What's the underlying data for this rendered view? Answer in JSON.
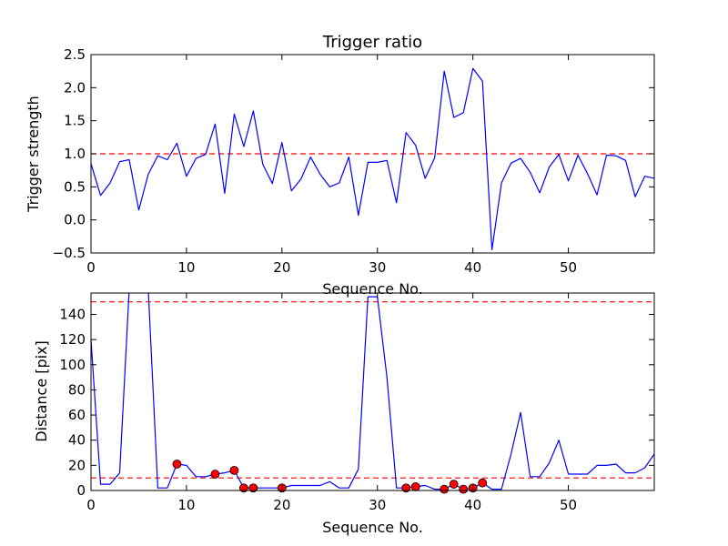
{
  "chart_data": [
    {
      "type": "line",
      "title": "Trigger ratio",
      "xlabel": "Sequence No.",
      "ylabel": "Trigger strength",
      "xlim": [
        0,
        59
      ],
      "ylim": [
        -0.5,
        2.5
      ],
      "xticks": [
        "0",
        "10",
        "20",
        "30",
        "40",
        "50"
      ],
      "yticks": [
        "2.5",
        "2.0",
        "1.5",
        "1.0",
        "0.5",
        "0.0",
        "−0.5"
      ],
      "threshold": 1.0,
      "grid": false,
      "colors": {
        "line": "#0000ff",
        "threshold": "#ff0000"
      },
      "series": [
        {
          "x": [
            0,
            1,
            2,
            3,
            4,
            5,
            6,
            7,
            8,
            9,
            10,
            11,
            12,
            13,
            14,
            15,
            16,
            17,
            18,
            19,
            20,
            21,
            22,
            23,
            24,
            25,
            26,
            27,
            28,
            29,
            30,
            31,
            32,
            33,
            34,
            35,
            36,
            37,
            38,
            39,
            40,
            41,
            42,
            43,
            44,
            45,
            46,
            47,
            48,
            49,
            50,
            51,
            52,
            53,
            54,
            55,
            56,
            57,
            58,
            59
          ],
          "values": [
            0.85,
            0.37,
            0.56,
            0.88,
            0.91,
            0.15,
            0.69,
            0.97,
            0.91,
            1.16,
            0.66,
            0.93,
            0.99,
            1.45,
            0.4,
            1.6,
            1.11,
            1.65,
            0.84,
            0.55,
            1.17,
            0.44,
            0.62,
            0.95,
            0.69,
            0.5,
            0.56,
            0.95,
            0.07,
            0.87,
            0.87,
            0.9,
            0.26,
            1.32,
            1.13,
            0.63,
            0.94,
            2.25,
            1.55,
            1.62,
            2.29,
            2.1,
            -0.45,
            0.56,
            0.86,
            0.93,
            0.72,
            0.41,
            0.8,
            0.99,
            0.59,
            0.98,
            0.7,
            0.38,
            0.98,
            0.97,
            0.9,
            0.35,
            0.66,
            0.63
          ]
        }
      ]
    },
    {
      "type": "line",
      "title": "",
      "xlabel": "Sequence No.",
      "ylabel": "Distance [pix]",
      "xlim": [
        0,
        59
      ],
      "ylim": [
        0,
        157
      ],
      "xticks": [
        "0",
        "10",
        "20",
        "30",
        "40",
        "50"
      ],
      "yticks": [
        "140",
        "120",
        "100",
        "80",
        "60",
        "40",
        "20",
        "0"
      ],
      "thresholds": [
        150,
        10
      ],
      "grid": false,
      "colors": {
        "line": "#0000ff",
        "threshold": "#ff0000",
        "marker": "#ff0000"
      },
      "series": [
        {
          "x": [
            0,
            1,
            2,
            3,
            4,
            5,
            6,
            7,
            8,
            9,
            10,
            11,
            12,
            13,
            14,
            15,
            16,
            17,
            18,
            19,
            20,
            21,
            22,
            23,
            24,
            25,
            26,
            27,
            28,
            29,
            30,
            31,
            32,
            33,
            34,
            35,
            36,
            37,
            38,
            39,
            40,
            41,
            42,
            43,
            44,
            45,
            46,
            47,
            48,
            49,
            50,
            51,
            52,
            53,
            54,
            55,
            56,
            57,
            58,
            59
          ],
          "values": [
            120,
            5,
            5,
            14,
            160,
            160,
            160,
            2,
            2,
            21,
            20,
            11,
            11,
            13,
            14,
            16,
            2,
            2,
            2,
            2,
            2,
            4,
            4,
            4,
            4,
            7,
            2,
            2,
            17,
            154,
            154,
            90,
            2,
            2,
            3,
            4,
            1,
            1,
            5,
            1,
            2,
            6,
            1,
            1,
            29,
            62,
            11,
            11,
            22,
            40,
            13,
            13,
            13,
            20,
            20,
            21,
            14,
            14,
            18,
            29
          ]
        }
      ],
      "markers": {
        "x": [
          9,
          13,
          15,
          16,
          17,
          20,
          33,
          34,
          37,
          38,
          39,
          40,
          41
        ],
        "values": [
          21,
          13,
          16,
          2,
          2,
          2,
          2,
          3,
          1,
          5,
          1,
          2,
          6
        ]
      }
    }
  ]
}
